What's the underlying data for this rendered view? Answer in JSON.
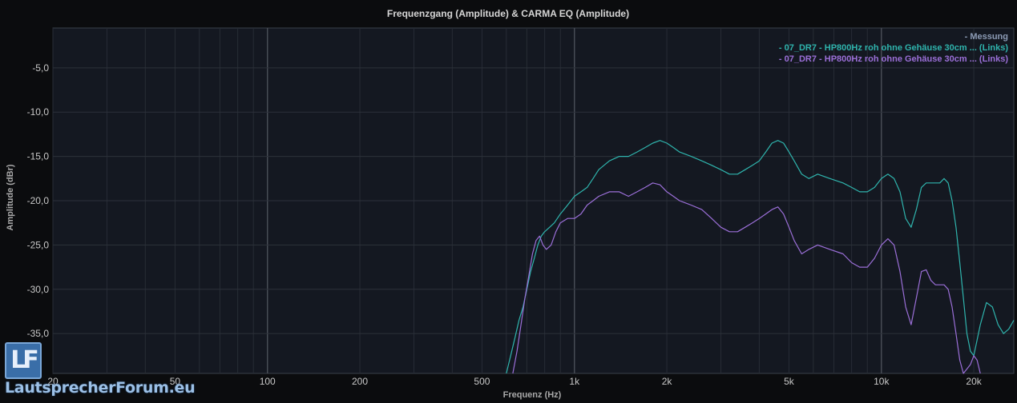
{
  "chart_data": {
    "type": "line",
    "title": "Frequenzgang (Amplitude) & CARMA EQ (Amplitude)",
    "xlabel": "Frequenz (Hz)",
    "ylabel": "Amplitude (dBr)",
    "x_scale": "log",
    "xlim": [
      20,
      27000
    ],
    "ylim": [
      -39.5,
      -0.5
    ],
    "x_ticks": [
      {
        "value": 20,
        "label": "20"
      },
      {
        "value": 50,
        "label": "50"
      },
      {
        "value": 100,
        "label": "100"
      },
      {
        "value": 200,
        "label": "200"
      },
      {
        "value": 500,
        "label": "500"
      },
      {
        "value": 1000,
        "label": "1k"
      },
      {
        "value": 2000,
        "label": "2k"
      },
      {
        "value": 5000,
        "label": "5k"
      },
      {
        "value": 10000,
        "label": "10k"
      },
      {
        "value": 20000,
        "label": "20k"
      }
    ],
    "y_ticks": [
      {
        "value": -5,
        "label": "-5,0"
      },
      {
        "value": -10,
        "label": "-10,0"
      },
      {
        "value": -15,
        "label": "-15,0"
      },
      {
        "value": -20,
        "label": "-20,0"
      },
      {
        "value": -25,
        "label": "-25,0"
      },
      {
        "value": -30,
        "label": "-30,0"
      },
      {
        "value": -35,
        "label": "-35,0"
      }
    ],
    "grid": true,
    "legend_position": "top-right",
    "legend": [
      {
        "label": "- Messung",
        "color": "#8c9bb5"
      }
    ],
    "series": [
      {
        "name": "- 07_DR7 - HP800Hz roh ohne Gehäuse 30cm ... (Links)",
        "color": "#2fb4ad",
        "points": [
          [
            600,
            -39.5
          ],
          [
            620,
            -37.5
          ],
          [
            640,
            -35.5
          ],
          [
            660,
            -33.5
          ],
          [
            680,
            -32
          ],
          [
            700,
            -30
          ],
          [
            720,
            -28
          ],
          [
            740,
            -26.5
          ],
          [
            760,
            -25
          ],
          [
            780,
            -24
          ],
          [
            800,
            -23.5
          ],
          [
            830,
            -23
          ],
          [
            860,
            -22.5
          ],
          [
            900,
            -21.5
          ],
          [
            950,
            -20.5
          ],
          [
            1000,
            -19.5
          ],
          [
            1050,
            -19
          ],
          [
            1100,
            -18.5
          ],
          [
            1150,
            -17.5
          ],
          [
            1200,
            -16.5
          ],
          [
            1300,
            -15.5
          ],
          [
            1400,
            -15
          ],
          [
            1500,
            -15
          ],
          [
            1600,
            -14.5
          ],
          [
            1700,
            -14
          ],
          [
            1800,
            -13.5
          ],
          [
            1900,
            -13.2
          ],
          [
            2000,
            -13.5
          ],
          [
            2100,
            -14
          ],
          [
            2200,
            -14.5
          ],
          [
            2400,
            -15
          ],
          [
            2600,
            -15.5
          ],
          [
            2800,
            -16
          ],
          [
            3000,
            -16.5
          ],
          [
            3200,
            -17
          ],
          [
            3400,
            -17
          ],
          [
            3600,
            -16.5
          ],
          [
            3800,
            -16
          ],
          [
            4000,
            -15.5
          ],
          [
            4200,
            -14.5
          ],
          [
            4400,
            -13.5
          ],
          [
            4600,
            -13.2
          ],
          [
            4800,
            -13.5
          ],
          [
            5000,
            -14.5
          ],
          [
            5200,
            -15.5
          ],
          [
            5500,
            -17
          ],
          [
            5800,
            -17.5
          ],
          [
            6200,
            -17
          ],
          [
            6800,
            -17.5
          ],
          [
            7500,
            -18
          ],
          [
            8000,
            -18.5
          ],
          [
            8500,
            -19
          ],
          [
            9000,
            -19
          ],
          [
            9500,
            -18.5
          ],
          [
            10000,
            -17.5
          ],
          [
            10500,
            -17
          ],
          [
            11000,
            -17.5
          ],
          [
            11500,
            -19
          ],
          [
            12000,
            -22
          ],
          [
            12500,
            -23
          ],
          [
            13000,
            -21
          ],
          [
            13500,
            -18.5
          ],
          [
            14000,
            -18
          ],
          [
            14500,
            -18
          ],
          [
            15000,
            -18
          ],
          [
            15500,
            -18
          ],
          [
            16000,
            -17.5
          ],
          [
            16500,
            -18
          ],
          [
            17000,
            -20
          ],
          [
            17500,
            -23
          ],
          [
            18000,
            -27
          ],
          [
            18500,
            -31
          ],
          [
            19000,
            -35
          ],
          [
            19500,
            -37
          ],
          [
            20000,
            -37.5
          ],
          [
            21000,
            -34
          ],
          [
            22000,
            -31.5
          ],
          [
            23000,
            -32
          ],
          [
            24000,
            -34
          ],
          [
            25000,
            -35
          ],
          [
            26000,
            -34.5
          ],
          [
            27000,
            -33.5
          ]
        ]
      },
      {
        "name": "- 07_DR7 - HP800Hz roh ohne Gehäuse 30cm ... (Links)",
        "color": "#9b6fd8",
        "points": [
          [
            630,
            -39.5
          ],
          [
            650,
            -37
          ],
          [
            670,
            -34
          ],
          [
            690,
            -31
          ],
          [
            710,
            -28.5
          ],
          [
            730,
            -26
          ],
          [
            750,
            -24.5
          ],
          [
            770,
            -24
          ],
          [
            790,
            -25
          ],
          [
            810,
            -25.5
          ],
          [
            840,
            -25
          ],
          [
            870,
            -23.5
          ],
          [
            900,
            -22.5
          ],
          [
            950,
            -22
          ],
          [
            1000,
            -22
          ],
          [
            1050,
            -21.5
          ],
          [
            1100,
            -20.5
          ],
          [
            1150,
            -20
          ],
          [
            1200,
            -19.5
          ],
          [
            1300,
            -19
          ],
          [
            1400,
            -19
          ],
          [
            1500,
            -19.5
          ],
          [
            1600,
            -19
          ],
          [
            1700,
            -18.5
          ],
          [
            1800,
            -18
          ],
          [
            1900,
            -18.2
          ],
          [
            2000,
            -19
          ],
          [
            2100,
            -19.5
          ],
          [
            2200,
            -20
          ],
          [
            2400,
            -20.5
          ],
          [
            2600,
            -21
          ],
          [
            2800,
            -22
          ],
          [
            3000,
            -23
          ],
          [
            3200,
            -23.5
          ],
          [
            3400,
            -23.5
          ],
          [
            3600,
            -23
          ],
          [
            3800,
            -22.5
          ],
          [
            4000,
            -22
          ],
          [
            4200,
            -21.5
          ],
          [
            4400,
            -21
          ],
          [
            4600,
            -20.7
          ],
          [
            4800,
            -21.5
          ],
          [
            5000,
            -23
          ],
          [
            5200,
            -24.5
          ],
          [
            5500,
            -26
          ],
          [
            5800,
            -25.5
          ],
          [
            6200,
            -25
          ],
          [
            6800,
            -25.5
          ],
          [
            7500,
            -26
          ],
          [
            8000,
            -27
          ],
          [
            8500,
            -27.5
          ],
          [
            9000,
            -27.5
          ],
          [
            9500,
            -26.5
          ],
          [
            10000,
            -25
          ],
          [
            10500,
            -24.3
          ],
          [
            11000,
            -25
          ],
          [
            11500,
            -28
          ],
          [
            12000,
            -32
          ],
          [
            12500,
            -34
          ],
          [
            13000,
            -31
          ],
          [
            13500,
            -28
          ],
          [
            14000,
            -27.8
          ],
          [
            14500,
            -29
          ],
          [
            15000,
            -29.5
          ],
          [
            15500,
            -29.5
          ],
          [
            16000,
            -29.5
          ],
          [
            16500,
            -30
          ],
          [
            17000,
            -32
          ],
          [
            17500,
            -35
          ],
          [
            18000,
            -38
          ],
          [
            18500,
            -39.5
          ],
          [
            19500,
            -38.5
          ],
          [
            20000,
            -37.5
          ],
          [
            20500,
            -38
          ],
          [
            21000,
            -39.5
          ]
        ]
      }
    ]
  },
  "watermark": {
    "mark": "LF",
    "text": "LautsprecherForum.eu"
  }
}
